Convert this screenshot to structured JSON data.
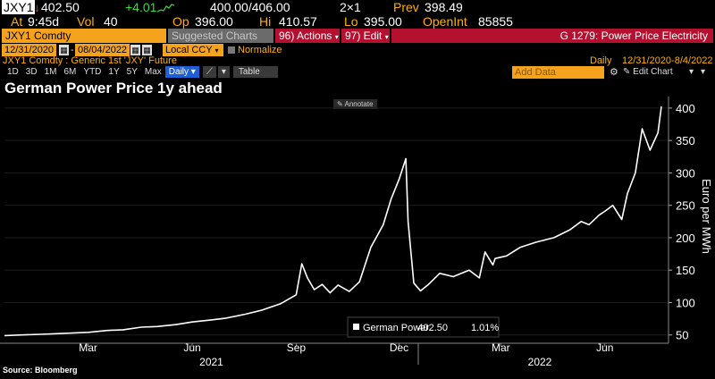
{
  "quote": {
    "ticker": "JXY1",
    "last": "402.50",
    "change": "+4.01",
    "bid_ask": "400.00/406.00",
    "size": "2×1",
    "prev_label": "Prev",
    "prev": "398.49",
    "at_label": "At",
    "time": "9:45d",
    "vol_label": "Vol",
    "vol": "40",
    "op_label": "Op",
    "op": "396.00",
    "hi_label": "Hi",
    "hi": "410.57",
    "lo_label": "Lo",
    "lo": "395.00",
    "oi_label": "OpenInt",
    "oi": "85855"
  },
  "toolbar": {
    "security": "JXY1 Comdty",
    "suggested": "Suggested Charts",
    "actions": "96) Actions",
    "edit": "97) Edit",
    "function_title": "G 1279: Power Price Electricity",
    "start_date": "12/31/2020",
    "end_date": "08/04/2022",
    "currency": "Local CCY",
    "normalize": "Normalize",
    "description": "JXY1 Comdty : Generic 1st 'JXY' Future",
    "periodicity_label": "Daily",
    "range_label": "12/31/2020-8/4/2022",
    "periods": [
      "1D",
      "3D",
      "1M",
      "6M",
      "YTD",
      "1Y",
      "5Y",
      "Max"
    ],
    "frequency": "Daily",
    "table": "Table",
    "add_data": "Add Data",
    "edit_chart": "Edit Chart",
    "annotate": "Annotate"
  },
  "chart_data": {
    "type": "line",
    "title": "German Power Price 1y ahead",
    "ylabel": "Euro per MWh",
    "ylim": [
      40,
      415
    ],
    "yticks": [
      50,
      100,
      150,
      200,
      250,
      300,
      350,
      400
    ],
    "xlim": [
      "2020-12-31",
      "2022-08-04"
    ],
    "month_ticks": [
      "Mar",
      "Jun",
      "Sep",
      "Dec",
      "Mar",
      "Jun"
    ],
    "year_labels": [
      "2021",
      "2022"
    ],
    "series": [
      {
        "name": "German Power",
        "last_value": "402.50",
        "last_change": "1.01%",
        "color": "#ffffff",
        "x": [
          "2020-12-31",
          "2021-01-15",
          "2021-02-01",
          "2021-02-15",
          "2021-03-01",
          "2021-03-15",
          "2021-04-01",
          "2021-04-15",
          "2021-05-01",
          "2021-05-15",
          "2021-06-01",
          "2021-06-15",
          "2021-07-01",
          "2021-07-15",
          "2021-08-01",
          "2021-08-15",
          "2021-09-01",
          "2021-09-15",
          "2021-09-20",
          "2021-09-25",
          "2021-10-01",
          "2021-10-08",
          "2021-10-15",
          "2021-10-22",
          "2021-11-01",
          "2021-11-10",
          "2021-11-20",
          "2021-12-01",
          "2021-12-08",
          "2021-12-15",
          "2021-12-21",
          "2021-12-23",
          "2021-12-28",
          "2022-01-03",
          "2022-01-10",
          "2022-01-20",
          "2022-02-01",
          "2022-02-15",
          "2022-02-24",
          "2022-03-01",
          "2022-03-08",
          "2022-03-10",
          "2022-03-20",
          "2022-04-01",
          "2022-04-15",
          "2022-05-01",
          "2022-05-15",
          "2022-05-25",
          "2022-06-01",
          "2022-06-10",
          "2022-06-16",
          "2022-06-22",
          "2022-06-30",
          "2022-07-05",
          "2022-07-12",
          "2022-07-18",
          "2022-07-25",
          "2022-08-01",
          "2022-08-04"
        ],
        "y": [
          49,
          50,
          51,
          52,
          53,
          54,
          57,
          58,
          62,
          63,
          66,
          70,
          73,
          76,
          82,
          88,
          98,
          112,
          160,
          138,
          120,
          128,
          115,
          127,
          117,
          132,
          185,
          220,
          260,
          290,
          322,
          225,
          130,
          118,
          128,
          145,
          140,
          150,
          138,
          178,
          158,
          168,
          172,
          185,
          193,
          200,
          212,
          225,
          220,
          235,
          242,
          250,
          228,
          268,
          300,
          368,
          335,
          362,
          402.5
        ]
      }
    ]
  },
  "source": "Source: Bloomberg"
}
